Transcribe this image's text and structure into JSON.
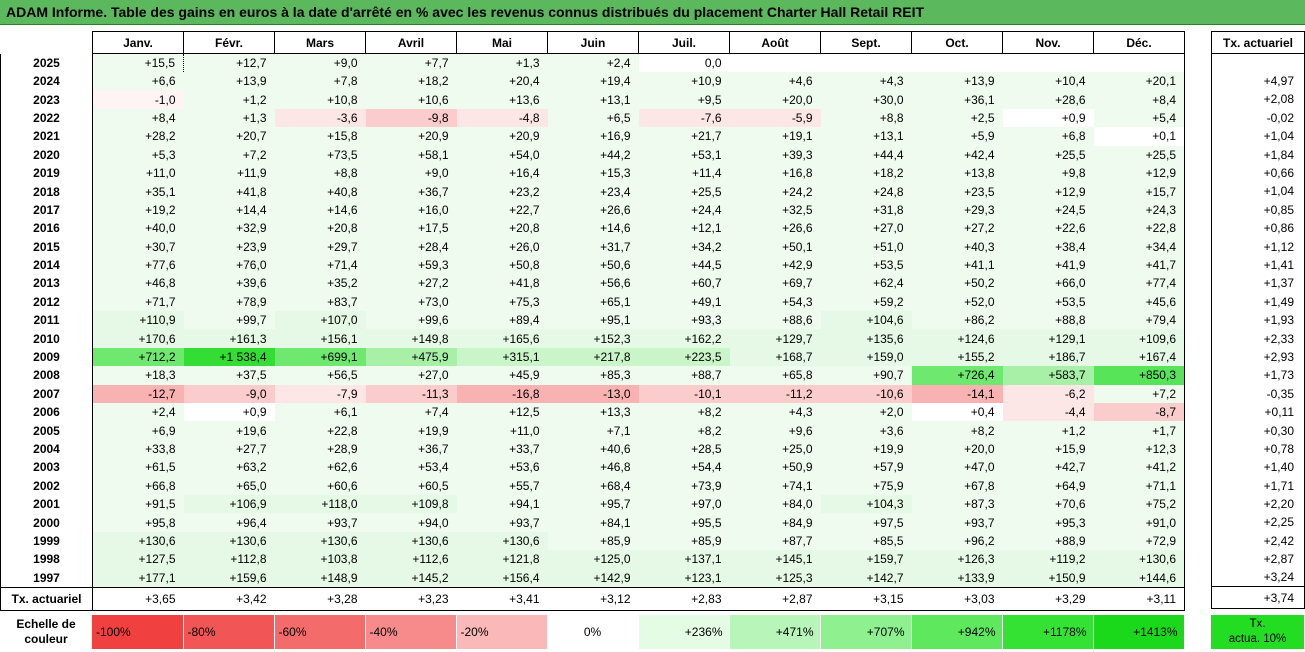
{
  "title": "ADAM Informe. Table des gains en euros à la date d'arrêté en % avec les revenus connus distribués du placement Charter Hall Retail REIT",
  "months": [
    "Janv.",
    "Févr.",
    "Mars",
    "Avril",
    "Mai",
    "Juin",
    "Juil.",
    "Août",
    "Sept.",
    "Oct.",
    "Nov.",
    "Déc."
  ],
  "side_header": "Tx. actuariel",
  "rows": [
    {
      "year": "2025",
      "values": [
        "+15,5",
        "+12,7",
        "+9,0",
        "+7,7",
        "+1,3",
        "+2,4",
        "0,0",
        "",
        "",
        "",
        "",
        ""
      ],
      "tx": ""
    },
    {
      "year": "2024",
      "values": [
        "+6,6",
        "+13,9",
        "+7,8",
        "+18,2",
        "+20,4",
        "+19,4",
        "+10,9",
        "+4,6",
        "+4,3",
        "+13,9",
        "+10,4",
        "+20,1"
      ],
      "tx": "+4,97"
    },
    {
      "year": "2023",
      "values": [
        "-1,0",
        "+1,2",
        "+10,8",
        "+10,6",
        "+13,6",
        "+13,1",
        "+9,5",
        "+20,0",
        "+30,0",
        "+36,1",
        "+28,6",
        "+8,4"
      ],
      "tx": "+2,08"
    },
    {
      "year": "2022",
      "values": [
        "+8,4",
        "+1,3",
        "-3,6",
        "-9,8",
        "-4,8",
        "+6,5",
        "-7,6",
        "-5,9",
        "+8,8",
        "+2,5",
        "+0,9",
        "+5,4"
      ],
      "tx": "-0,02"
    },
    {
      "year": "2021",
      "values": [
        "+28,2",
        "+20,7",
        "+15,8",
        "+20,9",
        "+20,9",
        "+16,9",
        "+21,7",
        "+19,1",
        "+13,1",
        "+5,9",
        "+6,8",
        "+0,1"
      ],
      "tx": "+1,04"
    },
    {
      "year": "2020",
      "values": [
        "+5,3",
        "+7,2",
        "+73,5",
        "+58,1",
        "+54,0",
        "+44,2",
        "+53,1",
        "+39,3",
        "+44,4",
        "+42,4",
        "+25,5",
        "+25,5"
      ],
      "tx": "+1,84"
    },
    {
      "year": "2019",
      "values": [
        "+11,0",
        "+11,9",
        "+8,8",
        "+9,0",
        "+16,4",
        "+15,3",
        "+11,4",
        "+16,8",
        "+18,2",
        "+13,8",
        "+9,8",
        "+12,9"
      ],
      "tx": "+0,66"
    },
    {
      "year": "2018",
      "values": [
        "+35,1",
        "+41,8",
        "+40,8",
        "+36,7",
        "+23,2",
        "+23,4",
        "+25,5",
        "+24,2",
        "+24,8",
        "+23,5",
        "+12,9",
        "+15,7"
      ],
      "tx": "+1,04"
    },
    {
      "year": "2017",
      "values": [
        "+19,2",
        "+14,4",
        "+14,6",
        "+16,0",
        "+22,7",
        "+26,6",
        "+24,4",
        "+32,5",
        "+31,8",
        "+29,3",
        "+24,5",
        "+24,3"
      ],
      "tx": "+0,85"
    },
    {
      "year": "2016",
      "values": [
        "+40,0",
        "+32,9",
        "+20,8",
        "+17,5",
        "+20,8",
        "+14,6",
        "+12,1",
        "+26,6",
        "+27,0",
        "+27,2",
        "+22,6",
        "+22,8"
      ],
      "tx": "+0,86"
    },
    {
      "year": "2015",
      "values": [
        "+30,7",
        "+23,9",
        "+29,7",
        "+28,4",
        "+26,0",
        "+31,7",
        "+34,2",
        "+50,1",
        "+51,0",
        "+40,3",
        "+38,4",
        "+34,4"
      ],
      "tx": "+1,12"
    },
    {
      "year": "2014",
      "values": [
        "+77,6",
        "+76,0",
        "+71,4",
        "+59,3",
        "+50,8",
        "+50,6",
        "+44,5",
        "+42,9",
        "+53,5",
        "+41,1",
        "+41,9",
        "+41,7"
      ],
      "tx": "+1,41"
    },
    {
      "year": "2013",
      "values": [
        "+46,8",
        "+39,6",
        "+35,2",
        "+27,2",
        "+41,8",
        "+56,6",
        "+60,7",
        "+69,7",
        "+62,4",
        "+50,2",
        "+66,0",
        "+77,4"
      ],
      "tx": "+1,37"
    },
    {
      "year": "2012",
      "values": [
        "+71,7",
        "+78,9",
        "+83,7",
        "+73,0",
        "+75,3",
        "+65,1",
        "+49,1",
        "+54,3",
        "+59,2",
        "+52,0",
        "+53,5",
        "+45,6"
      ],
      "tx": "+1,49"
    },
    {
      "year": "2011",
      "values": [
        "+110,9",
        "+99,7",
        "+107,0",
        "+99,6",
        "+89,4",
        "+95,1",
        "+93,3",
        "+88,6",
        "+104,6",
        "+86,2",
        "+88,8",
        "+79,4"
      ],
      "tx": "+1,93"
    },
    {
      "year": "2010",
      "values": [
        "+170,6",
        "+161,3",
        "+156,1",
        "+149,8",
        "+165,6",
        "+152,3",
        "+162,2",
        "+129,7",
        "+135,6",
        "+124,6",
        "+129,1",
        "+109,6"
      ],
      "tx": "+2,33"
    },
    {
      "year": "2009",
      "values": [
        "+712,2",
        "+1 538,4",
        "+699,1",
        "+475,9",
        "+315,1",
        "+217,8",
        "+223,5",
        "+168,7",
        "+159,0",
        "+155,2",
        "+186,7",
        "+167,4"
      ],
      "tx": "+2,93"
    },
    {
      "year": "2008",
      "values": [
        "+18,3",
        "+37,5",
        "+56,5",
        "+27,0",
        "+45,9",
        "+85,3",
        "+88,7",
        "+65,8",
        "+90,7",
        "+726,4",
        "+583,7",
        "+850,3"
      ],
      "tx": "+1,73"
    },
    {
      "year": "2007",
      "values": [
        "-12,7",
        "-9,0",
        "-7,9",
        "-11,3",
        "-16,8",
        "-13,0",
        "-10,1",
        "-11,2",
        "-10,6",
        "-14,1",
        "-6,2",
        "+7,2"
      ],
      "tx": "-0,35"
    },
    {
      "year": "2006",
      "values": [
        "+2,4",
        "+0,9",
        "+6,1",
        "+7,4",
        "+12,5",
        "+13,3",
        "+8,2",
        "+4,3",
        "+2,0",
        "+0,4",
        "-4,4",
        "-8,7"
      ],
      "tx": "+0,11"
    },
    {
      "year": "2005",
      "values": [
        "+6,9",
        "+19,6",
        "+22,8",
        "+19,9",
        "+11,0",
        "+7,1",
        "+8,2",
        "+9,6",
        "+3,6",
        "+8,2",
        "+1,2",
        "+1,7"
      ],
      "tx": "+0,30"
    },
    {
      "year": "2004",
      "values": [
        "+33,8",
        "+27,7",
        "+28,9",
        "+36,7",
        "+33,7",
        "+40,6",
        "+28,5",
        "+25,0",
        "+19,9",
        "+20,0",
        "+15,9",
        "+12,3"
      ],
      "tx": "+0,78"
    },
    {
      "year": "2003",
      "values": [
        "+61,5",
        "+63,2",
        "+62,6",
        "+53,4",
        "+53,6",
        "+46,8",
        "+54,4",
        "+50,9",
        "+57,9",
        "+47,0",
        "+42,7",
        "+41,2"
      ],
      "tx": "+1,40"
    },
    {
      "year": "2002",
      "values": [
        "+66,8",
        "+65,0",
        "+60,6",
        "+60,5",
        "+55,7",
        "+68,4",
        "+73,9",
        "+74,1",
        "+75,9",
        "+67,8",
        "+64,9",
        "+71,1"
      ],
      "tx": "+1,71"
    },
    {
      "year": "2001",
      "values": [
        "+91,5",
        "+106,9",
        "+118,0",
        "+109,8",
        "+94,1",
        "+95,7",
        "+97,0",
        "+84,0",
        "+104,3",
        "+87,3",
        "+70,6",
        "+75,2"
      ],
      "tx": "+2,20"
    },
    {
      "year": "2000",
      "values": [
        "+95,8",
        "+96,4",
        "+93,7",
        "+94,0",
        "+93,7",
        "+84,1",
        "+95,5",
        "+84,9",
        "+97,5",
        "+93,7",
        "+95,3",
        "+91,0"
      ],
      "tx": "+2,25"
    },
    {
      "year": "1999",
      "values": [
        "+130,6",
        "+130,6",
        "+130,6",
        "+130,6",
        "+130,6",
        "+85,9",
        "+85,9",
        "+87,7",
        "+85,5",
        "+96,2",
        "+88,9",
        "+72,9"
      ],
      "tx": "+2,42"
    },
    {
      "year": "1998",
      "values": [
        "+127,5",
        "+112,8",
        "+103,8",
        "+112,6",
        "+121,8",
        "+125,0",
        "+137,1",
        "+145,1",
        "+159,7",
        "+126,3",
        "+119,2",
        "+130,6"
      ],
      "tx": "+2,87"
    },
    {
      "year": "1997",
      "values": [
        "+177,1",
        "+159,6",
        "+148,9",
        "+145,2",
        "+156,4",
        "+142,9",
        "+123,1",
        "+125,3",
        "+142,7",
        "+133,9",
        "+150,9",
        "+144,6"
      ],
      "tx": "+3,24"
    }
  ],
  "totals": {
    "label": "Tx. actuariel",
    "values": [
      "+3,65",
      "+3,42",
      "+3,28",
      "+3,23",
      "+3,41",
      "+3,12",
      "+2,83",
      "+2,87",
      "+3,15",
      "+3,03",
      "+3,29",
      "+3,11"
    ],
    "tx": "+3,74"
  },
  "scale": {
    "label": "Echelle de couleur",
    "items": [
      {
        "text": "-100%",
        "color": "#f04040"
      },
      {
        "text": "-80%",
        "color": "#f25555"
      },
      {
        "text": "-60%",
        "color": "#f46b6b"
      },
      {
        "text": "-40%",
        "color": "#f78a8a"
      },
      {
        "text": "-20%",
        "color": "#fab8b8"
      },
      {
        "text": "0%",
        "color": "#ffffff"
      },
      {
        "text": "+236%",
        "color": "#e4fbe4"
      },
      {
        "text": "+471%",
        "color": "#b8f5b8"
      },
      {
        "text": "+707%",
        "color": "#8ef08e"
      },
      {
        "text": "+942%",
        "color": "#5ee85e"
      },
      {
        "text": "+1178%",
        "color": "#34e234"
      },
      {
        "text": "+1413%",
        "color": "#1ad81a"
      }
    ],
    "side": {
      "line1": "Tx.",
      "line2": "actua. 10%",
      "color": "#22dd22"
    }
  },
  "colors": {
    "title_bg": "#5cb85c",
    "positive_light": "#eefbee",
    "negative_light": "#fde6e6"
  }
}
